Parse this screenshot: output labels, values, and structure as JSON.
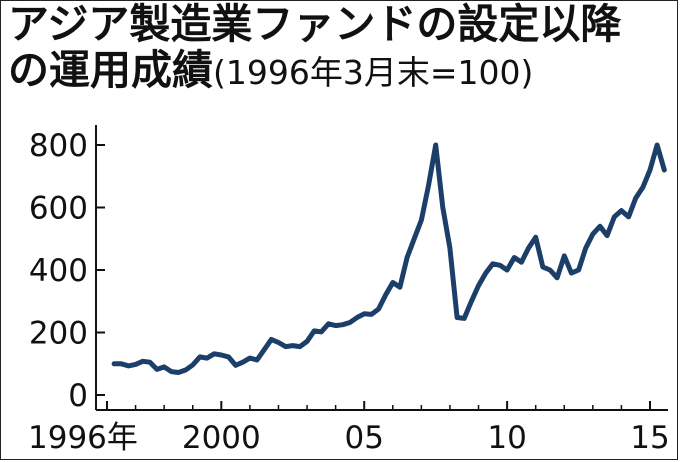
{
  "chart_data": {
    "type": "line",
    "title": "アジア製造業ファンドの設定以降の運用成績",
    "subtitle": "(1996年3月末=100)",
    "xlabel": "",
    "ylabel": "",
    "xlim": [
      1995.9,
      2015.7
    ],
    "ylim": [
      0,
      850
    ],
    "x_ticks": [
      {
        "value": 1996,
        "label": "1996年"
      },
      {
        "value": 2000,
        "label": "2000"
      },
      {
        "value": 2005,
        "label": "05"
      },
      {
        "value": 2010,
        "label": "10"
      },
      {
        "value": 2015,
        "label": "15"
      }
    ],
    "y_ticks": [
      {
        "value": 0,
        "label": "0"
      },
      {
        "value": 200,
        "label": "200"
      },
      {
        "value": 400,
        "label": "400"
      },
      {
        "value": 600,
        "label": "600"
      },
      {
        "value": 800,
        "label": "800"
      }
    ],
    "grid": false,
    "line_color": "#1c3f69",
    "series": [
      {
        "x": [
          1996.25,
          1996.5,
          1996.75,
          1997.0,
          1997.25,
          1997.5,
          1997.75,
          1998.0,
          1998.25,
          1998.5,
          1998.75,
          1999.0,
          1999.25,
          1999.5,
          1999.75,
          2000.0,
          2000.25,
          2000.5,
          2000.75,
          2001.0,
          2001.25,
          2001.5,
          2001.75,
          2002.0,
          2002.25,
          2002.5,
          2002.75,
          2003.0,
          2003.25,
          2003.5,
          2003.75,
          2004.0,
          2004.25,
          2004.5,
          2004.75,
          2005.0,
          2005.25,
          2005.5,
          2005.75,
          2006.0,
          2006.25,
          2006.5,
          2006.75,
          2007.0,
          2007.25,
          2007.5,
          2007.75,
          2008.0,
          2008.25,
          2008.5,
          2008.75,
          2009.0,
          2009.25,
          2009.5,
          2009.75,
          2010.0,
          2010.25,
          2010.5,
          2010.75,
          2011.0,
          2011.25,
          2011.5,
          2011.75,
          2012.0,
          2012.25,
          2012.5,
          2012.75,
          2013.0,
          2013.25,
          2013.5,
          2013.75,
          2014.0,
          2014.25,
          2014.5,
          2014.75,
          2015.0,
          2015.25,
          2015.5
        ],
        "y": [
          100,
          100,
          93,
          98,
          108,
          105,
          82,
          90,
          75,
          72,
          80,
          96,
          122,
          118,
          132,
          128,
          122,
          95,
          105,
          118,
          112,
          145,
          178,
          168,
          155,
          158,
          155,
          172,
          205,
          202,
          228,
          222,
          225,
          232,
          248,
          260,
          258,
          275,
          320,
          360,
          345,
          440,
          500,
          560,
          670,
          800,
          600,
          470,
          248,
          245,
          300,
          350,
          390,
          420,
          415,
          400,
          440,
          425,
          470,
          505,
          410,
          400,
          375,
          445,
          390,
          400,
          470,
          515,
          540,
          510,
          570,
          590,
          570,
          630,
          665,
          720,
          800,
          720
        ]
      }
    ]
  }
}
